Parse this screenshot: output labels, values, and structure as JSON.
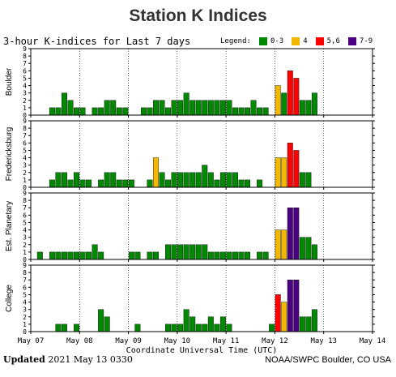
{
  "title": "Station K Indices",
  "subtitle": "3-hour K-indices for Last 7 days",
  "legend": {
    "label": "Legend:",
    "items": [
      {
        "label": "0-3",
        "color": "#008800"
      },
      {
        "label": "4",
        "color": "#f2b800"
      },
      {
        "label": "5,6",
        "color": "#ff0000"
      },
      {
        "label": "7-9",
        "color": "#4b0082"
      }
    ]
  },
  "footer": {
    "updated_label": "Updated",
    "updated_value": "2021 May 13 0330",
    "credit": "NOAA/SWPC Boulder, CO USA"
  },
  "chart_data": {
    "type": "bar",
    "xlabel": "Coordinate Universal Time (UTC)",
    "x_ticks": [
      "May 07",
      "May 08",
      "May 09",
      "May 10",
      "May 11",
      "May 12",
      "May 13",
      "May 14"
    ],
    "y_ticks": [
      0,
      1,
      2,
      3,
      4,
      5,
      6,
      7,
      8,
      9
    ],
    "ylim": [
      0,
      9
    ],
    "bins_per_day": 8,
    "panels": [
      {
        "name": "Boulder",
        "values": [
          0,
          0,
          0,
          1,
          1,
          3,
          2,
          1,
          1,
          0,
          1,
          1,
          2,
          2,
          1,
          1,
          0,
          0,
          1,
          1,
          2,
          2,
          1,
          2,
          2,
          3,
          2,
          2,
          2,
          2,
          2,
          2,
          2,
          1,
          1,
          1,
          2,
          1,
          1,
          0,
          4,
          3,
          6,
          5,
          2,
          2,
          3,
          0,
          0,
          0,
          0,
          0,
          0,
          0,
          0,
          0
        ]
      },
      {
        "name": "Fredericksburg",
        "values": [
          0,
          0,
          0,
          1,
          2,
          2,
          1,
          2,
          1,
          1,
          0,
          1,
          2,
          2,
          1,
          1,
          1,
          0,
          0,
          1,
          4,
          2,
          1,
          2,
          2,
          2,
          2,
          2,
          3,
          2,
          1,
          2,
          2,
          2,
          1,
          1,
          0,
          1,
          0,
          0,
          4,
          4,
          6,
          5,
          2,
          2,
          0,
          0,
          0,
          0,
          0,
          0,
          0,
          0,
          0,
          0
        ]
      },
      {
        "name": "Est. Planetary",
        "values": [
          0,
          1,
          0,
          1,
          1,
          1,
          1,
          1,
          1,
          1,
          2,
          1,
          0,
          0,
          0,
          0,
          1,
          1,
          0,
          1,
          1,
          0,
          2,
          2,
          2,
          2,
          2,
          2,
          2,
          1,
          1,
          1,
          1,
          1,
          1,
          1,
          0,
          1,
          1,
          0,
          4,
          4,
          7,
          7,
          3,
          3,
          2,
          0,
          0,
          0,
          0,
          0,
          0,
          0,
          0,
          0
        ]
      },
      {
        "name": "College",
        "values": [
          0,
          0,
          0,
          0,
          1,
          1,
          0,
          1,
          0,
          0,
          0,
          3,
          2,
          0,
          0,
          0,
          0,
          1,
          0,
          0,
          0,
          0,
          1,
          1,
          1,
          3,
          2,
          1,
          1,
          2,
          1,
          2,
          1,
          0,
          0,
          0,
          0,
          0,
          0,
          1,
          5,
          4,
          7,
          7,
          2,
          2,
          3,
          0,
          0,
          0,
          0,
          0,
          0,
          0,
          0,
          0
        ]
      }
    ]
  }
}
